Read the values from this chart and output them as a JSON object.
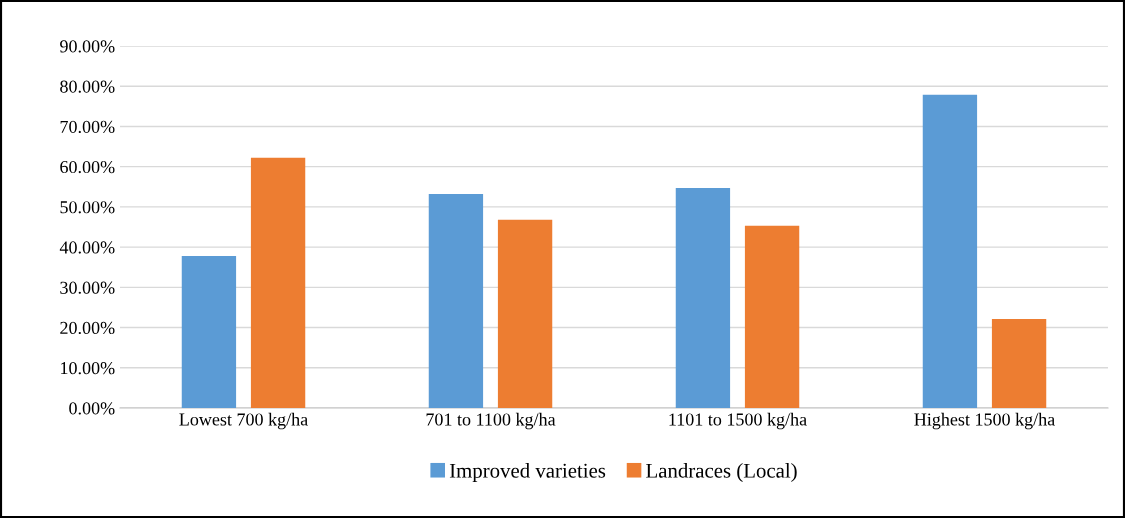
{
  "chart_data": {
    "type": "bar",
    "categories": [
      "Lowest 700 kg/ha",
      "701 to 1100 kg/ha",
      "1101 to 1500 kg/ha",
      "Highest 1500 kg/ha"
    ],
    "series": [
      {
        "name": "Improved varieties",
        "color": "#5b9bd5",
        "values": [
          37.8,
          53.2,
          54.7,
          77.9
        ]
      },
      {
        "name": "Landraces (Local)",
        "color": "#ed7d31",
        "values": [
          62.2,
          46.8,
          45.3,
          22.1
        ]
      }
    ],
    "ylim": [
      0,
      90
    ],
    "yticks": [
      {
        "value": 0,
        "label": "0.00%"
      },
      {
        "value": 10,
        "label": "10.00%"
      },
      {
        "value": 20,
        "label": "20.00%"
      },
      {
        "value": 30,
        "label": "30.00%"
      },
      {
        "value": 40,
        "label": "40.00%"
      },
      {
        "value": 50,
        "label": "50.00%"
      },
      {
        "value": 60,
        "label": "60.00%"
      },
      {
        "value": 70,
        "label": "70.00%"
      },
      {
        "value": 80,
        "label": "80.00%"
      },
      {
        "value": 90,
        "label": "90.00%"
      }
    ],
    "grid": "y",
    "legend": "bottom"
  }
}
